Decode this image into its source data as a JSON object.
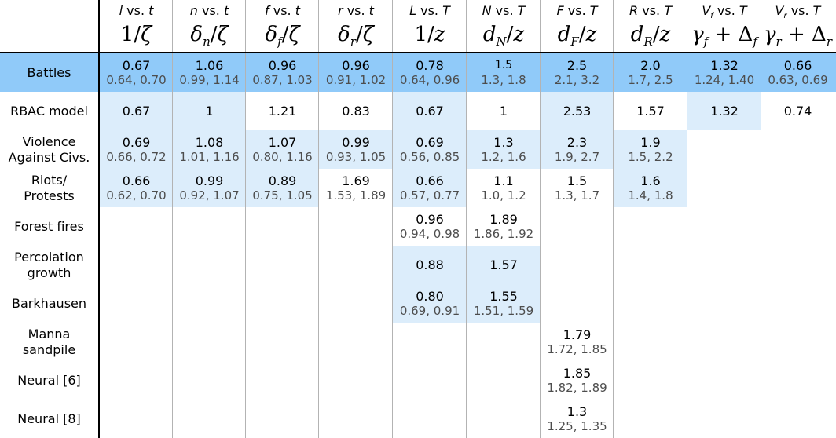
{
  "colors": {
    "highlight": "#90caf9",
    "light": "#dcedfb",
    "ci_text": "#4d4d4d"
  },
  "columns": [
    {
      "id": "c1",
      "top_var": "l",
      "top_rest": " vs. ",
      "top_var2": "t",
      "formula": "1/ζ"
    },
    {
      "id": "c2",
      "top_var": "n",
      "top_rest": " vs. ",
      "top_var2": "t",
      "formula": "δn/ζ"
    },
    {
      "id": "c3",
      "top_var": "f",
      "top_rest": " vs. ",
      "top_var2": "t",
      "formula": "δf/ζ"
    },
    {
      "id": "c4",
      "top_var": "r",
      "top_rest": " vs. ",
      "top_var2": "t",
      "formula": "δr/ζ"
    },
    {
      "id": "c5",
      "top_var": "L",
      "top_rest": " vs. ",
      "top_var2": "T",
      "formula": "1/z"
    },
    {
      "id": "c6",
      "top_var": "N",
      "top_rest": " vs. ",
      "top_var2": "T",
      "formula": "dN/z"
    },
    {
      "id": "c7",
      "top_var": "F",
      "top_rest": " vs. ",
      "top_var2": "T",
      "formula": "dF/z"
    },
    {
      "id": "c8",
      "top_var": "R",
      "top_rest": " vs. ",
      "top_var2": "T",
      "formula": "dR/z"
    },
    {
      "id": "c9",
      "top_var": "Vf",
      "top_rest": " vs. ",
      "top_var2": "T",
      "formula": "γf + Δf"
    },
    {
      "id": "c10",
      "top_var": "Vr",
      "top_rest": " vs. ",
      "top_var2": "T",
      "formula": "γr + Δr"
    }
  ],
  "rows": [
    {
      "label": "Battles",
      "style": "highlight",
      "cells": [
        {
          "v": "0.67",
          "ci": "0.64, 0.70"
        },
        {
          "v": "1.06",
          "ci": "0.99, 1.14"
        },
        {
          "v": "0.96",
          "ci": "0.87, 1.03"
        },
        {
          "v": "0.96",
          "ci": "0.91, 1.02"
        },
        {
          "v": "0.78",
          "ci": "0.64, 0.96"
        },
        {
          "v": "1.5",
          "ci": "1.3, 1.8",
          "small": true
        },
        {
          "v": "2.5",
          "ci": "2.1, 3.2"
        },
        {
          "v": "2.0",
          "ci": "1.7, 2.5"
        },
        {
          "v": "1.32",
          "ci": "1.24, 1.40"
        },
        {
          "v": "0.66",
          "ci": "0.63, 0.69"
        }
      ]
    },
    {
      "label": "RBAC model",
      "cells": [
        {
          "v": "0.67",
          "shade": true
        },
        {
          "v": "1",
          "shade": true
        },
        {
          "v": "1.21"
        },
        {
          "v": "0.83"
        },
        {
          "v": "0.67",
          "shade": true
        },
        {
          "v": "1"
        },
        {
          "v": "2.53",
          "shade": true
        },
        {
          "v": "1.57"
        },
        {
          "v": "1.32",
          "shade": true
        },
        {
          "v": "0.74"
        }
      ]
    },
    {
      "label": "Violence\nAgainst Civs.",
      "cells": [
        {
          "v": "0.69",
          "ci": "0.66, 0.72",
          "shade": true
        },
        {
          "v": "1.08",
          "ci": "1.01, 1.16",
          "shade": true
        },
        {
          "v": "1.07",
          "ci": "0.80, 1.16",
          "shade": true
        },
        {
          "v": "0.99",
          "ci": "0.93, 1.05",
          "shade": true
        },
        {
          "v": "0.69",
          "ci": "0.56, 0.85",
          "shade": true
        },
        {
          "v": "1.3",
          "ci": "1.2, 1.6",
          "shade": true
        },
        {
          "v": "2.3",
          "ci": "1.9, 2.7",
          "shade": true
        },
        {
          "v": "1.9",
          "ci": "1.5, 2.2",
          "shade": true
        },
        null,
        null
      ]
    },
    {
      "label": "Riots/\nProtests",
      "cells": [
        {
          "v": "0.66",
          "ci": "0.62, 0.70",
          "shade": true
        },
        {
          "v": "0.99",
          "ci": "0.92, 1.07",
          "shade": true
        },
        {
          "v": "0.89",
          "ci": "0.75, 1.05",
          "shade": true
        },
        {
          "v": "1.69",
          "ci": "1.53, 1.89"
        },
        {
          "v": "0.66",
          "ci": "0.57, 0.77",
          "shade": true
        },
        {
          "v": "1.1",
          "ci": "1.0, 1.2"
        },
        {
          "v": "1.5",
          "ci": "1.3, 1.7"
        },
        {
          "v": "1.6",
          "ci": "1.4, 1.8",
          "shade": true
        },
        null,
        null
      ]
    },
    {
      "label": "Forest fires",
      "cells": [
        null,
        null,
        null,
        null,
        {
          "v": "0.96",
          "ci": "0.94, 0.98"
        },
        {
          "v": "1.89",
          "ci": "1.86, 1.92"
        },
        null,
        null,
        null,
        null
      ]
    },
    {
      "label": "Percolation\ngrowth",
      "cells": [
        null,
        null,
        null,
        null,
        {
          "v": "0.88",
          "shade": true
        },
        {
          "v": "1.57",
          "shade": true
        },
        null,
        null,
        null,
        null
      ]
    },
    {
      "label": "Barkhausen",
      "cells": [
        null,
        null,
        null,
        null,
        {
          "v": "0.80",
          "ci": "0.69, 0.91",
          "shade": true
        },
        {
          "v": "1.55",
          "ci": "1.51, 1.59",
          "shade": true
        },
        null,
        null,
        null,
        null
      ]
    },
    {
      "label": "Manna\nsandpile",
      "cells": [
        null,
        null,
        null,
        null,
        null,
        null,
        {
          "v": "1.79",
          "ci": "1.72, 1.85"
        },
        null,
        null,
        null
      ]
    },
    {
      "label": "Neural [6]",
      "cells": [
        null,
        null,
        null,
        null,
        null,
        null,
        {
          "v": "1.85",
          "ci": "1.82, 1.89"
        },
        null,
        null,
        null
      ]
    },
    {
      "label": "Neural [8]",
      "cells": [
        null,
        null,
        null,
        null,
        null,
        null,
        {
          "v": "1.3",
          "ci": "1.25, 1.35"
        },
        null,
        null,
        null
      ]
    }
  ]
}
